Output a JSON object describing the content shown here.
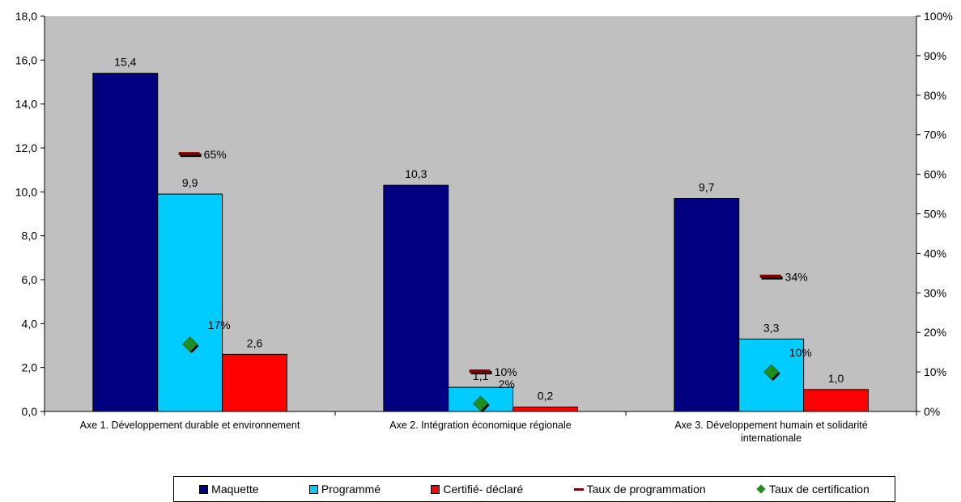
{
  "chart_data": {
    "type": "bar",
    "categories": [
      [
        "Axe 1. Développement durable et environnement"
      ],
      [
        "Axe 2. Intégration économique régionale"
      ],
      [
        "Axe 3. Développement humain et solidarité",
        "internationale"
      ]
    ],
    "series": [
      {
        "name": "Maquette",
        "type": "bar",
        "axis": "left",
        "values": [
          15.4,
          10.3,
          9.7
        ],
        "labels": [
          "15,4",
          "10,3",
          "9,7"
        ],
        "color": "#000080"
      },
      {
        "name": "Programmé",
        "type": "bar",
        "axis": "left",
        "values": [
          9.9,
          1.1,
          3.3
        ],
        "labels": [
          "9,9",
          "1,1",
          "3,3"
        ],
        "color": "#00ccff"
      },
      {
        "name": "Certifié- déclaré",
        "type": "bar",
        "axis": "left",
        "values": [
          2.6,
          0.2,
          1.0
        ],
        "labels": [
          "2,6",
          "0,2",
          "1,0"
        ],
        "color": "#ff0000"
      },
      {
        "name": "Taux de programmation",
        "type": "marker-dash",
        "axis": "right",
        "values": [
          0.65,
          0.1,
          0.34
        ],
        "labels": [
          "65%",
          "10%",
          "34%"
        ],
        "color": "#800000"
      },
      {
        "name": "Taux de certification",
        "type": "marker-diamond",
        "axis": "right",
        "values": [
          0.17,
          0.02,
          0.1
        ],
        "labels": [
          "17%",
          "2%",
          "10%"
        ],
        "color": "#1f8f1f"
      }
    ],
    "y_left": {
      "min": 0,
      "max": 18,
      "step": 2,
      "tick_labels": [
        "0,0",
        "2,0",
        "4,0",
        "6,0",
        "8,0",
        "10,0",
        "12,0",
        "14,0",
        "16,0",
        "18,0"
      ]
    },
    "y_right": {
      "min": 0,
      "max": 1,
      "step": 0.1,
      "tick_labels": [
        "0%",
        "10%",
        "20%",
        "30%",
        "40%",
        "50%",
        "60%",
        "70%",
        "80%",
        "90%",
        "100%"
      ]
    },
    "plot_background": "#c0c0c0",
    "grid": false,
    "legend_position": "bottom"
  }
}
